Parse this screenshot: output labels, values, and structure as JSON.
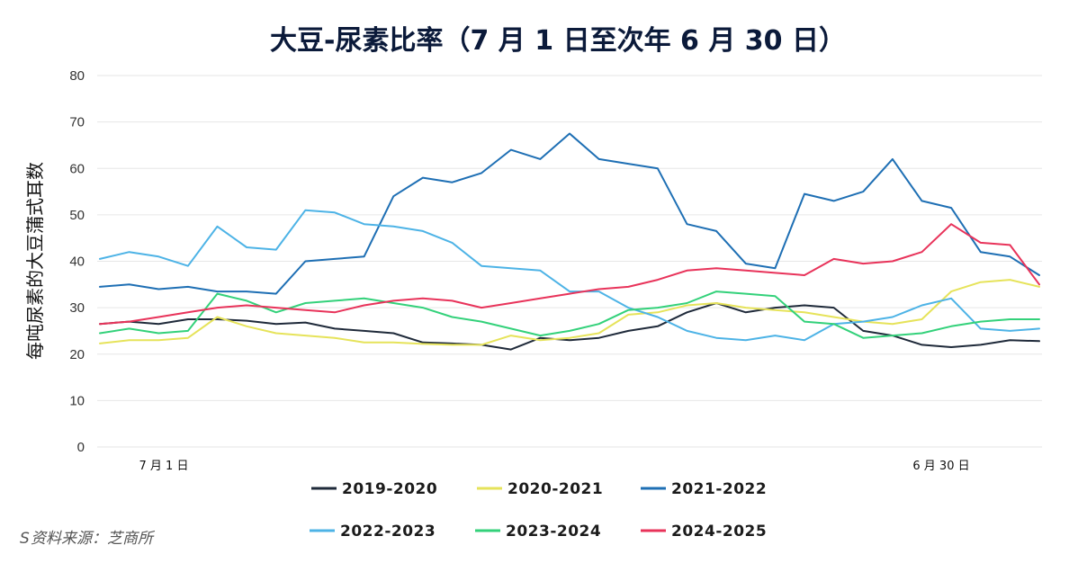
{
  "chart_data": {
    "type": "line",
    "title": "大豆-尿素比率（7 月 1 日至次年 6 月 30 日）",
    "ylabel": "每吨尿素的大豆蒲式耳数",
    "xlabel": "",
    "ylim": [
      0,
      80
    ],
    "yticks": [
      0,
      10,
      20,
      30,
      40,
      50,
      60,
      70,
      80
    ],
    "x_tick_labels": [
      "7 月 1 日",
      "6 月 30 日"
    ],
    "grid": true,
    "legend_position": "bottom",
    "source": "资料来源：芝商所",
    "source_prefix": "S",
    "series": [
      {
        "name": "2019-2020",
        "color": "#1f2a3a",
        "values": [
          26.5,
          27.0,
          26.5,
          27.5,
          27.5,
          27.2,
          26.5,
          26.8,
          25.5,
          25.0,
          24.5,
          22.5,
          22.3,
          22.0,
          21.0,
          23.5,
          23.0,
          23.5,
          25.0,
          26.0,
          29.0,
          31.0,
          29.0,
          30.0,
          30.5,
          30.0,
          25.0,
          24.0,
          22.0,
          21.5,
          22.0,
          23.0,
          22.8
        ]
      },
      {
        "name": "2020-2021",
        "color": "#e6e35a",
        "values": [
          22.3,
          23.0,
          23.0,
          23.5,
          28.0,
          26.0,
          24.5,
          24.0,
          23.5,
          22.5,
          22.5,
          22.2,
          22.0,
          22.0,
          24.0,
          23.0,
          23.5,
          24.5,
          28.5,
          29.0,
          30.5,
          31.0,
          30.0,
          29.5,
          29.0,
          28.0,
          27.0,
          26.5,
          27.5,
          33.5,
          35.5,
          36.0,
          34.5
        ]
      },
      {
        "name": "2021-2022",
        "color": "#1e6fb4",
        "values": [
          34.5,
          35.0,
          34.0,
          34.5,
          33.5,
          33.5,
          33.0,
          40.0,
          40.5,
          41.0,
          54.0,
          58.0,
          57.0,
          59.0,
          64.0,
          62.0,
          67.5,
          62.0,
          61.0,
          60.0,
          48.0,
          46.5,
          39.5,
          38.5,
          54.5,
          53.0,
          55.0,
          62.0,
          53.0,
          51.5,
          42.0,
          41.0,
          37.0
        ]
      },
      {
        "name": "2022-2023",
        "color": "#4db3e6",
        "values": [
          40.5,
          42.0,
          41.0,
          39.0,
          47.5,
          43.0,
          42.5,
          51.0,
          50.5,
          48.0,
          47.5,
          46.5,
          44.0,
          39.0,
          38.5,
          38.0,
          33.5,
          33.5,
          30.0,
          28.0,
          25.0,
          23.5,
          23.0,
          24.0,
          23.0,
          26.5,
          27.0,
          28.0,
          30.5,
          32.0,
          25.5,
          25.0,
          25.5
        ]
      },
      {
        "name": "2023-2024",
        "color": "#33d17a",
        "values": [
          24.5,
          25.5,
          24.5,
          25.0,
          33.0,
          31.5,
          29.0,
          31.0,
          31.5,
          32.0,
          31.0,
          30.0,
          28.0,
          27.0,
          25.5,
          24.0,
          25.0,
          26.5,
          29.5,
          30.0,
          31.0,
          33.5,
          33.0,
          32.5,
          27.0,
          26.5,
          23.5,
          24.0,
          24.5,
          26.0,
          27.0,
          27.5,
          27.5
        ]
      },
      {
        "name": "2024-2025",
        "color": "#e8335a",
        "values": [
          26.5,
          27.0,
          28.0,
          29.0,
          30.0,
          30.5,
          30.0,
          29.5,
          29.0,
          30.5,
          31.5,
          32.0,
          31.5,
          30.0,
          31.0,
          32.0,
          33.0,
          34.0,
          34.5,
          36.0,
          38.0,
          38.5,
          38.0,
          37.5,
          37.0,
          40.5,
          39.5,
          40.0,
          42.0,
          48.0,
          44.0,
          43.5,
          35.0
        ]
      }
    ]
  }
}
